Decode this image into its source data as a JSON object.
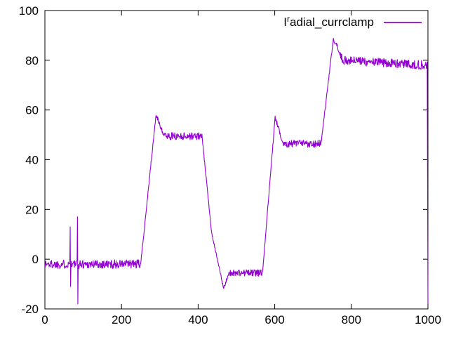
{
  "window": {
    "background": "#ffffff"
  },
  "chart_data": {
    "type": "line",
    "title": "",
    "xlabel": "",
    "ylabel": "",
    "xlim": [
      0,
      1000
    ],
    "ylim": [
      -20,
      100
    ],
    "xticks": [
      0,
      200,
      400,
      600,
      800,
      1000
    ],
    "yticks": [
      -20,
      0,
      20,
      40,
      60,
      80,
      100
    ],
    "grid": false,
    "mirrored_ticks": true,
    "legend": {
      "position": "top-right",
      "label_base": "I",
      "label_sup": "r",
      "label_rest": "adial_currclamp",
      "label_plain": "Iradial_currclamp"
    },
    "colors": {
      "axis": "#000000",
      "text": "#000000",
      "background": "#ffffff"
    },
    "series": [
      {
        "name": "Iradial_currclamp",
        "color": "#9400D3",
        "x_step": 1,
        "noise_seed": 1337,
        "segments": [
          {
            "x0": 0,
            "x1": 250,
            "y0": -2,
            "y1": -2,
            "noise": 1.8
          },
          {
            "x0": 250,
            "x1": 290,
            "y0": -2,
            "y1": 58,
            "noise": 0.6
          },
          {
            "x0": 290,
            "x1": 312,
            "y0": 58,
            "y1": 49.5,
            "noise": 1.0
          },
          {
            "x0": 312,
            "x1": 410,
            "y0": 49.5,
            "y1": 49.5,
            "noise": 1.5
          },
          {
            "x0": 410,
            "x1": 435,
            "y0": 49.5,
            "y1": 11,
            "noise": 0.5
          },
          {
            "x0": 435,
            "x1": 466,
            "y0": 11,
            "y1": -11.5,
            "noise": 0.5
          },
          {
            "x0": 466,
            "x1": 482,
            "y0": -11.5,
            "y1": -5.5,
            "noise": 0.8
          },
          {
            "x0": 482,
            "x1": 568,
            "y0": -5.5,
            "y1": -5.5,
            "noise": 1.4
          },
          {
            "x0": 568,
            "x1": 601,
            "y0": -5.5,
            "y1": 57,
            "noise": 0.6
          },
          {
            "x0": 601,
            "x1": 622,
            "y0": 57,
            "y1": 46.5,
            "noise": 1.0
          },
          {
            "x0": 622,
            "x1": 721,
            "y0": 46.5,
            "y1": 46.5,
            "noise": 1.5
          },
          {
            "x0": 721,
            "x1": 753,
            "y0": 46.5,
            "y1": 88.5,
            "noise": 0.6
          },
          {
            "x0": 753,
            "x1": 778,
            "y0": 88.5,
            "y1": 80,
            "noise": 1.4
          },
          {
            "x0": 778,
            "x1": 998,
            "y0": 80,
            "y1": 78,
            "noise": 1.8
          },
          {
            "x0": 998,
            "x1": 1000,
            "y0": 78,
            "y1": -18,
            "noise": 0
          }
        ],
        "spikes": [
          {
            "x": 66,
            "up": 13,
            "down": -11
          },
          {
            "x": 85,
            "up": 17,
            "down": -18
          }
        ]
      }
    ]
  }
}
